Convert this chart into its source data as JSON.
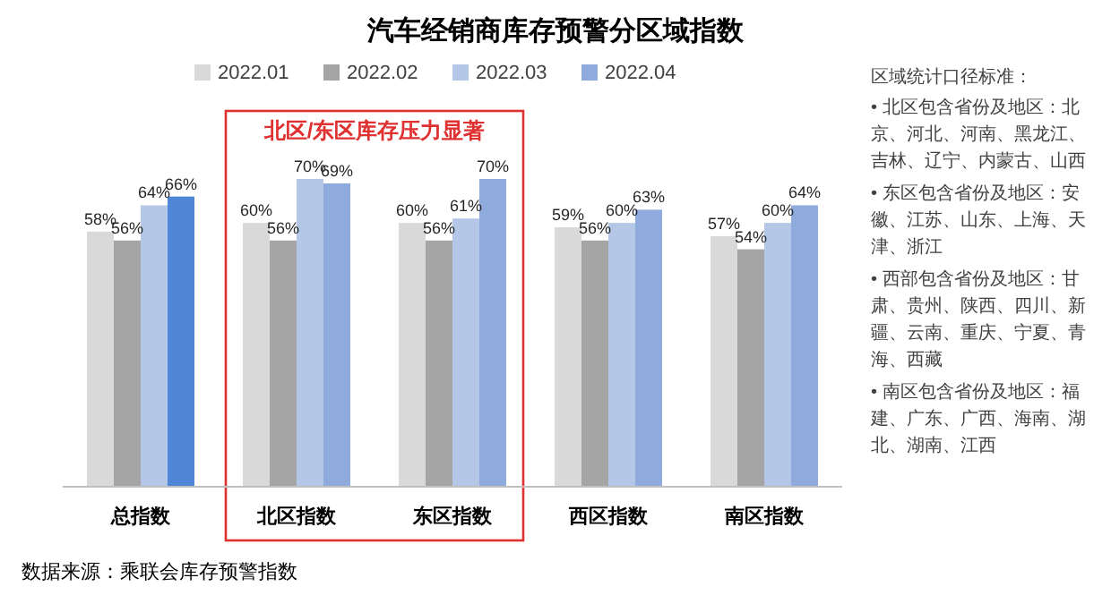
{
  "chart_data": {
    "type": "bar",
    "title": "汽车经销商库存预警分区域指数",
    "categories": [
      "总指数",
      "北区指数",
      "东区指数",
      "西区指数",
      "南区指数"
    ],
    "series": [
      {
        "name": "2022.01",
        "color": "#d9d9d9",
        "values": [
          58,
          60,
          60,
          59,
          57
        ],
        "value_labels": [
          "58%",
          "60%",
          "60%",
          "59%",
          "57%"
        ]
      },
      {
        "name": "2022.02",
        "color": "#a5a5a5",
        "values": [
          56,
          56,
          56,
          56,
          54
        ],
        "value_labels": [
          "56%",
          "56%",
          "56%",
          "56%",
          "54%"
        ]
      },
      {
        "name": "2022.03",
        "color": "#b4c7e7",
        "values": [
          64,
          70,
          61,
          60,
          60
        ],
        "value_labels": [
          "64%",
          "70%",
          "61%",
          "60%",
          "60%"
        ]
      },
      {
        "name": "2022.04",
        "color": "#8faadc",
        "colors": [
          "#4f86d6",
          "#8faadc",
          "#8faadc",
          "#8faadc",
          "#8faadc"
        ],
        "values": [
          66,
          69,
          70,
          63,
          64
        ],
        "value_labels": [
          "66%",
          "69%",
          "70%",
          "63%",
          "64%"
        ]
      }
    ],
    "legend": "top",
    "annotations": [
      "北区/东区库存压力显著",
      "数据来源：乘联会库存预警指数",
      "区域统计口径标准：",
      "• 北区包含省份及地区：北京、河北、河南、黑龙江、吉林、辽宁、内蒙古、山西",
      "• 东区包含省份及地区：安徽、江苏、山东、上海、天津、浙江",
      "• 西部包含省份及地区：甘肃、贵州、陕西、四川、新疆、云南、重庆、宁夏、青海、西藏",
      "• 南区包含省份及地区：福建、广东、广西、海南、湖北、湖南、江西"
    ]
  }
}
